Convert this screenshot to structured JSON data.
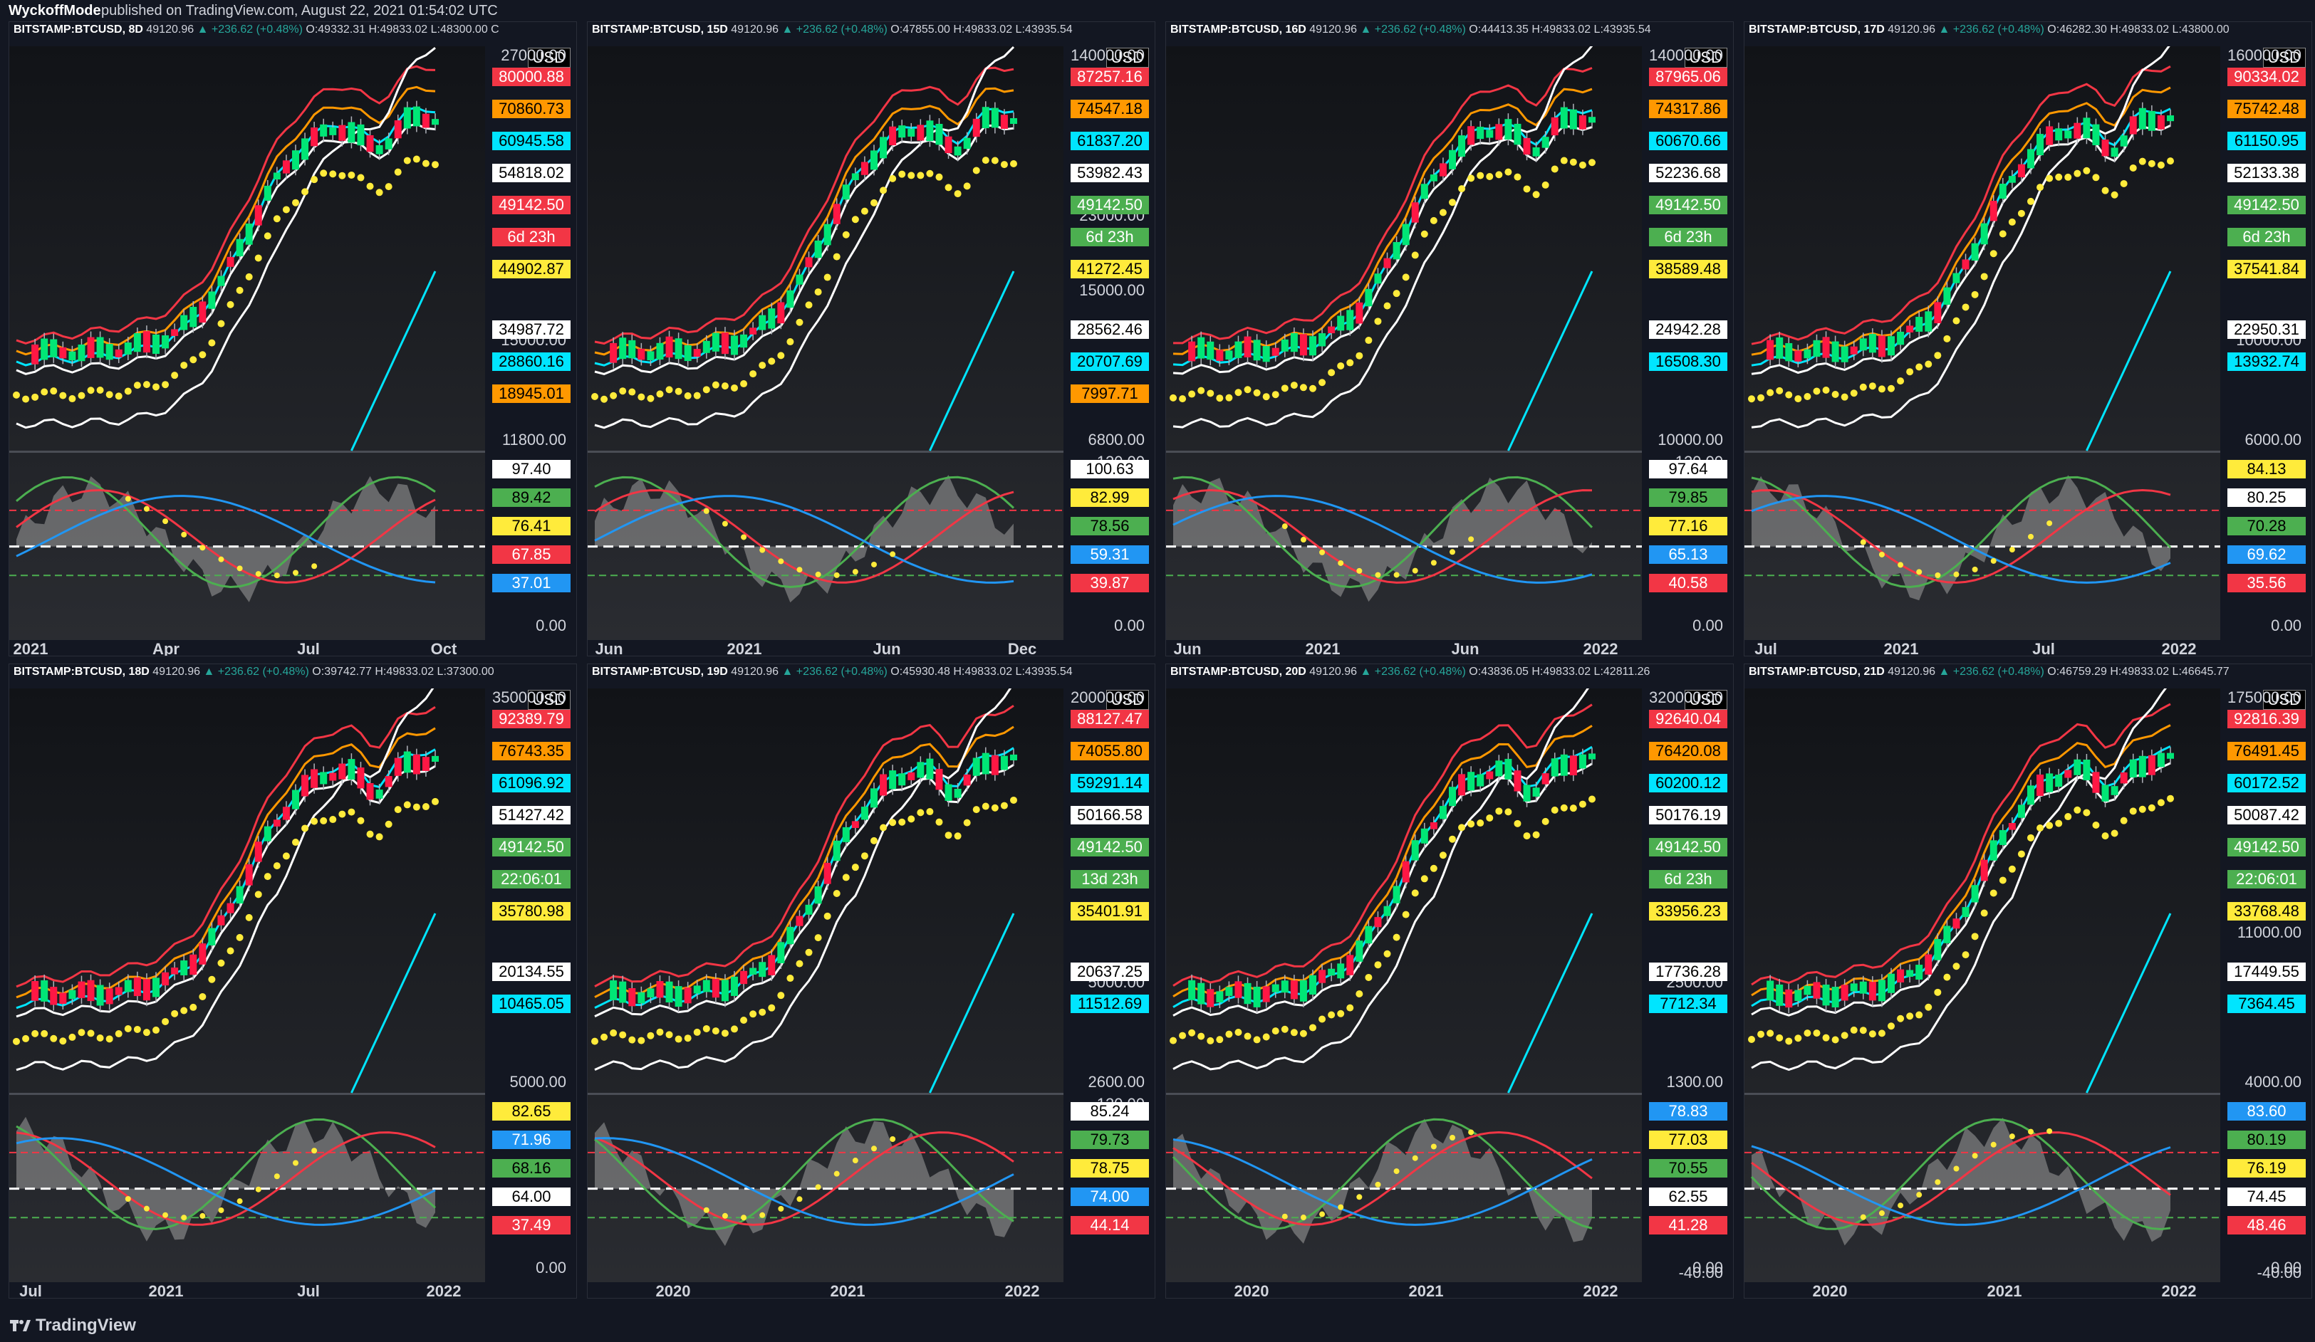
{
  "header": {
    "author": "WyckoffMode",
    "published": "published on TradingView.com, August 22, 2021 01:54:02 UTC"
  },
  "footer": {
    "brand": "TradingView"
  },
  "colors": {
    "up": "#26a69a",
    "red": "#f23645",
    "orange": "#ff9800",
    "cyan": "#00e5ff",
    "white": "#ffffff",
    "yellow": "#ffeb3b",
    "green": "#4caf50",
    "blue": "#2196f3",
    "background": "#131722"
  },
  "chart_data": [
    {
      "type": "line",
      "symbol": "BITSTAMP:BTCUSD, 8D",
      "last": "49120.96",
      "change": "▲ +236.62 (+0.48%)",
      "ohlc": "O:49332.31 H:49833.02 L:48300.00 C",
      "price_ticks": [
        "27000.00",
        "21000.00",
        "15000.00",
        "11800.00"
      ],
      "price_labels": [
        {
          "text": "80000.88",
          "color": "#f23645"
        },
        {
          "text": "70860.73",
          "color": "#ff9800"
        },
        {
          "text": "60945.58",
          "color": "#00e5ff"
        },
        {
          "text": "54818.02",
          "color": "#ffffff"
        },
        {
          "text": "49142.50",
          "color": "#f23645"
        },
        {
          "text": "6d 23h",
          "color": "#f23645"
        },
        {
          "text": "44902.87",
          "color": "#ffeb3b"
        },
        {
          "text": "34987.72",
          "color": "#ffffff"
        },
        {
          "text": "28860.16",
          "color": "#00e5ff"
        },
        {
          "text": "18945.01",
          "color": "#ff9800"
        }
      ],
      "osc_ticks": [
        "0.00"
      ],
      "osc_labels": [
        {
          "text": "97.40",
          "color": "#ffffff"
        },
        {
          "text": "89.42",
          "color": "#4caf50"
        },
        {
          "text": "76.41",
          "color": "#ffeb3b"
        },
        {
          "text": "67.85",
          "color": "#f23645"
        },
        {
          "text": "37.01",
          "color": "#2196f3"
        }
      ],
      "x_ticks": [
        "2021",
        "Apr",
        "Jul",
        "Oct"
      ]
    },
    {
      "type": "line",
      "symbol": "BITSTAMP:BTCUSD, 15D",
      "last": "49120.96",
      "change": "▲ +236.62 (+0.48%)",
      "ohlc": "O:47855.00 H:49833.02 L:43935.54",
      "price_ticks": [
        "140000.00",
        "23000.00",
        "15000.00",
        "10000.00",
        "6800.00"
      ],
      "price_labels": [
        {
          "text": "87257.16",
          "color": "#f23645"
        },
        {
          "text": "74547.18",
          "color": "#ff9800"
        },
        {
          "text": "61837.20",
          "color": "#00e5ff"
        },
        {
          "text": "53982.43",
          "color": "#ffffff"
        },
        {
          "text": "49142.50",
          "color": "#4caf50"
        },
        {
          "text": "6d 23h",
          "color": "#4caf50"
        },
        {
          "text": "41272.45",
          "color": "#ffeb3b"
        },
        {
          "text": "28562.46",
          "color": "#ffffff"
        },
        {
          "text": "20707.69",
          "color": "#00e5ff"
        },
        {
          "text": "7997.71",
          "color": "#ff9800"
        }
      ],
      "osc_ticks": [
        "120.00",
        "0.00"
      ],
      "osc_labels": [
        {
          "text": "100.63",
          "color": "#ffffff"
        },
        {
          "text": "82.99",
          "color": "#ffeb3b"
        },
        {
          "text": "78.56",
          "color": "#4caf50"
        },
        {
          "text": "59.31",
          "color": "#2196f3"
        },
        {
          "text": "39.87",
          "color": "#f23645"
        }
      ],
      "x_ticks": [
        "Jun",
        "2021",
        "Jun",
        "Dec"
      ]
    },
    {
      "type": "line",
      "symbol": "BITSTAMP:BTCUSD, 16D",
      "last": "49120.96",
      "change": "▲ +236.62 (+0.48%)",
      "ohlc": "O:44413.35 H:49833.02 L:43935.54",
      "price_ticks": [
        "140000.00",
        "10000.00"
      ],
      "price_labels": [
        {
          "text": "87965.06",
          "color": "#f23645"
        },
        {
          "text": "74317.86",
          "color": "#ff9800"
        },
        {
          "text": "60670.66",
          "color": "#00e5ff"
        },
        {
          "text": "52236.68",
          "color": "#ffffff"
        },
        {
          "text": "49142.50",
          "color": "#4caf50"
        },
        {
          "text": "6d 23h",
          "color": "#4caf50"
        },
        {
          "text": "38589.48",
          "color": "#ffeb3b"
        },
        {
          "text": "24942.28",
          "color": "#ffffff"
        },
        {
          "text": "16508.30",
          "color": "#00e5ff"
        }
      ],
      "osc_ticks": [
        "120.00",
        "0.00"
      ],
      "osc_labels": [
        {
          "text": "97.64",
          "color": "#ffffff"
        },
        {
          "text": "79.85",
          "color": "#4caf50"
        },
        {
          "text": "77.16",
          "color": "#ffeb3b"
        },
        {
          "text": "65.13",
          "color": "#2196f3"
        },
        {
          "text": "40.58",
          "color": "#f23645"
        }
      ],
      "x_ticks": [
        "Jun",
        "2021",
        "Jun",
        "2022"
      ]
    },
    {
      "type": "line",
      "symbol": "BITSTAMP:BTCUSD, 17D",
      "last": "49120.96",
      "change": "▲ +236.62 (+0.48%)",
      "ohlc": "O:46282.30 H:49833.02 L:43800.00",
      "price_ticks": [
        "160000.00",
        "18000.00",
        "10000.00",
        "6000.00"
      ],
      "price_labels": [
        {
          "text": "90334.02",
          "color": "#f23645"
        },
        {
          "text": "75742.48",
          "color": "#ff9800"
        },
        {
          "text": "61150.95",
          "color": "#00e5ff"
        },
        {
          "text": "52133.38",
          "color": "#ffffff"
        },
        {
          "text": "49142.50",
          "color": "#4caf50"
        },
        {
          "text": "6d 23h",
          "color": "#4caf50"
        },
        {
          "text": "37541.84",
          "color": "#ffeb3b"
        },
        {
          "text": "22950.31",
          "color": "#ffffff"
        },
        {
          "text": "13932.74",
          "color": "#00e5ff"
        }
      ],
      "osc_ticks": [
        "0.00"
      ],
      "osc_labels": [
        {
          "text": "84.13",
          "color": "#ffeb3b"
        },
        {
          "text": "80.25",
          "color": "#ffffff"
        },
        {
          "text": "70.28",
          "color": "#4caf50"
        },
        {
          "text": "69.62",
          "color": "#2196f3"
        },
        {
          "text": "35.56",
          "color": "#f23645"
        }
      ],
      "x_ticks": [
        "Jul",
        "2021",
        "Jul",
        "2022"
      ]
    },
    {
      "type": "line",
      "symbol": "BITSTAMP:BTCUSD, 18D",
      "last": "49120.96",
      "change": "▲ +236.62 (+0.48%)",
      "ohlc": "O:39742.77 H:49833.02 L:37300.00",
      "price_ticks": [
        "350000.00",
        "5000.00"
      ],
      "price_labels": [
        {
          "text": "92389.79",
          "color": "#f23645"
        },
        {
          "text": "76743.35",
          "color": "#ff9800"
        },
        {
          "text": "61096.92",
          "color": "#00e5ff"
        },
        {
          "text": "51427.42",
          "color": "#ffffff"
        },
        {
          "text": "49142.50",
          "color": "#4caf50"
        },
        {
          "text": "22:06:01",
          "color": "#4caf50"
        },
        {
          "text": "35780.98",
          "color": "#ffeb3b"
        },
        {
          "text": "20134.55",
          "color": "#ffffff"
        },
        {
          "text": "10465.05",
          "color": "#00e5ff"
        }
      ],
      "osc_ticks": [
        "0.00"
      ],
      "osc_labels": [
        {
          "text": "82.65",
          "color": "#ffeb3b"
        },
        {
          "text": "71.96",
          "color": "#2196f3"
        },
        {
          "text": "68.16",
          "color": "#4caf50"
        },
        {
          "text": "64.00",
          "color": "#ffffff"
        },
        {
          "text": "37.49",
          "color": "#f23645"
        }
      ],
      "x_ticks": [
        "Jul",
        "2021",
        "Jul",
        "2022"
      ]
    },
    {
      "type": "line",
      "symbol": "BITSTAMP:BTCUSD, 19D",
      "last": "49120.96",
      "change": "▲ +236.62 (+0.48%)",
      "ohlc": "O:45930.48 H:49833.02 L:43935.54",
      "price_ticks": [
        "200000.00",
        "10000.00",
        "5000.00",
        "2600.00"
      ],
      "price_labels": [
        {
          "text": "88127.47",
          "color": "#f23645"
        },
        {
          "text": "74055.80",
          "color": "#ff9800"
        },
        {
          "text": "59291.14",
          "color": "#00e5ff"
        },
        {
          "text": "50166.58",
          "color": "#ffffff"
        },
        {
          "text": "49142.50",
          "color": "#4caf50"
        },
        {
          "text": "13d 23h",
          "color": "#4caf50"
        },
        {
          "text": "35401.91",
          "color": "#ffeb3b"
        },
        {
          "text": "20637.25",
          "color": "#ffffff"
        },
        {
          "text": "11512.69",
          "color": "#00e5ff"
        }
      ],
      "osc_ticks": [
        "120.00"
      ],
      "osc_labels": [
        {
          "text": "85.24",
          "color": "#ffffff"
        },
        {
          "text": "79.73",
          "color": "#4caf50"
        },
        {
          "text": "78.75",
          "color": "#ffeb3b"
        },
        {
          "text": "74.00",
          "color": "#2196f3"
        },
        {
          "text": "44.14",
          "color": "#f23645"
        }
      ],
      "x_ticks": [
        "2020",
        "2021",
        "2022"
      ]
    },
    {
      "type": "line",
      "symbol": "BITSTAMP:BTCUSD, 20D",
      "last": "49120.96",
      "change": "▲ +236.62 (+0.48%)",
      "ohlc": "O:43836.05 H:49833.02 L:42811.26",
      "price_ticks": [
        "320000.00",
        "5000.00",
        "2500.00",
        "1300.00"
      ],
      "price_labels": [
        {
          "text": "92640.04",
          "color": "#f23645"
        },
        {
          "text": "76420.08",
          "color": "#ff9800"
        },
        {
          "text": "60200.12",
          "color": "#00e5ff"
        },
        {
          "text": "50176.19",
          "color": "#ffffff"
        },
        {
          "text": "49142.50",
          "color": "#4caf50"
        },
        {
          "text": "6d 23h",
          "color": "#4caf50"
        },
        {
          "text": "33956.23",
          "color": "#ffeb3b"
        },
        {
          "text": "17736.28",
          "color": "#ffffff"
        },
        {
          "text": "7712.34",
          "color": "#00e5ff"
        }
      ],
      "osc_ticks": [
        "0.00",
        "-40.00"
      ],
      "osc_labels": [
        {
          "text": "78.83",
          "color": "#2196f3"
        },
        {
          "text": "77.03",
          "color": "#ffeb3b"
        },
        {
          "text": "70.55",
          "color": "#4caf50"
        },
        {
          "text": "62.55",
          "color": "#ffffff"
        },
        {
          "text": "41.28",
          "color": "#f23645"
        }
      ],
      "x_ticks": [
        "2020",
        "2021",
        "2022"
      ]
    },
    {
      "type": "line",
      "symbol": "BITSTAMP:BTCUSD, 21D",
      "last": "49120.96",
      "change": "▲ +236.62 (+0.48%)",
      "ohlc": "O:46759.29 H:49833.02 L:46645.77",
      "price_ticks": [
        "175000.00",
        "11000.00",
        "4000.00"
      ],
      "price_labels": [
        {
          "text": "92816.39",
          "color": "#f23645"
        },
        {
          "text": "76491.45",
          "color": "#ff9800"
        },
        {
          "text": "60172.52",
          "color": "#00e5ff"
        },
        {
          "text": "50087.42",
          "color": "#ffffff"
        },
        {
          "text": "49142.50",
          "color": "#4caf50"
        },
        {
          "text": "22:06:01",
          "color": "#4caf50"
        },
        {
          "text": "33768.48",
          "color": "#ffeb3b"
        },
        {
          "text": "17449.55",
          "color": "#ffffff"
        },
        {
          "text": "7364.45",
          "color": "#00e5ff"
        }
      ],
      "osc_ticks": [
        "0.00",
        "-40.00"
      ],
      "osc_labels": [
        {
          "text": "83.60",
          "color": "#2196f3"
        },
        {
          "text": "80.19",
          "color": "#4caf50"
        },
        {
          "text": "76.19",
          "color": "#ffeb3b"
        },
        {
          "text": "74.45",
          "color": "#ffffff"
        },
        {
          "text": "48.46",
          "color": "#f23645"
        }
      ],
      "x_ticks": [
        "2020",
        "2021",
        "2022"
      ]
    }
  ]
}
